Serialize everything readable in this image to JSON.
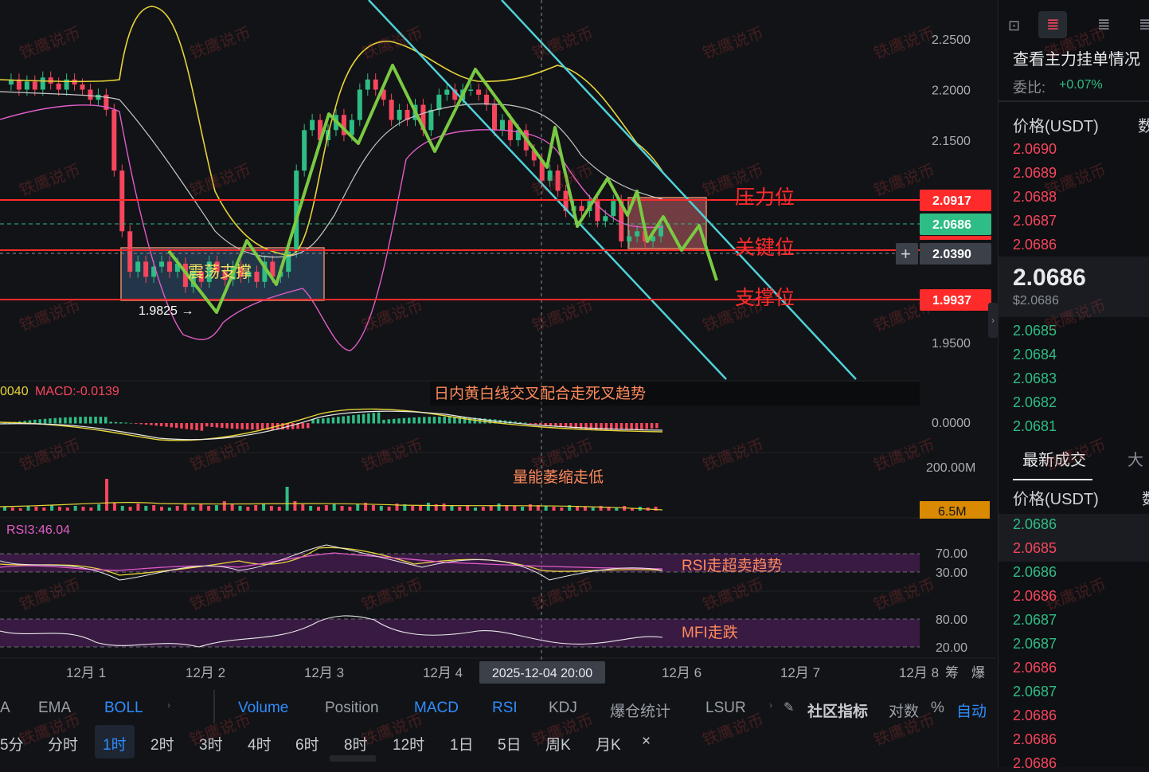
{
  "watermark": "铁鹰说币",
  "colors": {
    "up": "#2ebd85",
    "down": "#f6465d",
    "accent": "#2e8dff",
    "boll_upper": "#e6d43a",
    "boll_mid": "#c8c8c8",
    "boll_lower": "#e05dc8",
    "trend": "#7ac943",
    "channel": "#4fd1d9",
    "level": "#ff2b2b"
  },
  "main_chart": {
    "y_axis_ticks": [
      "2.2500",
      "2.2000",
      "2.1500",
      "1.9500"
    ],
    "price_tags": {
      "resistance": "2.0917",
      "last": "2.0686",
      "crosshair": "2.0390",
      "support": "1.9937"
    },
    "low_marker": "1.9825 →",
    "annotations": {
      "range_box": "震荡支撑",
      "resistance": "压力位",
      "key": "关键位",
      "support": "支撑位"
    }
  },
  "chart_data": {
    "type": "candlestick",
    "symbol_quote": "USDT",
    "interval": "1时",
    "ylim": [
      1.92,
      2.285
    ],
    "y_ticks": [
      1.95,
      2.15,
      2.2,
      2.25
    ],
    "x_tick_labels": [
      "12月 1",
      "12月 2",
      "12月 3",
      "12月 4",
      "12月 6",
      "12月 7",
      "12月 8"
    ],
    "crosshair_time": "2025-12-04 20:00",
    "levels": {
      "resistance": 2.0917,
      "last_price": 2.0686,
      "key": 2.039,
      "support": 1.9937,
      "marked_low": 1.9825
    },
    "close_path": [
      2.205,
      2.21,
      2.2,
      2.208,
      2.2,
      2.212,
      2.206,
      2.2,
      2.21,
      2.205,
      2.2,
      2.19,
      2.195,
      2.18,
      2.12,
      2.06,
      2.02,
      2.03,
      2.015,
      2.025,
      2.03,
      2.02,
      2.028,
      2.005,
      2.02,
      2.01,
      2.03,
      2.02,
      2.012,
      2.025,
      2.015,
      2.02,
      2.01,
      2.03,
      2.015,
      2.02,
      2.04,
      2.12,
      2.16,
      2.17,
      2.15,
      2.16,
      2.175,
      2.155,
      2.17,
      2.2,
      2.21,
      2.2,
      2.19,
      2.17,
      2.18,
      2.17,
      2.185,
      2.16,
      2.18,
      2.195,
      2.2,
      2.19,
      2.2,
      2.2,
      2.195,
      2.185,
      2.16,
      2.17,
      2.15,
      2.16,
      2.14,
      2.13,
      2.11,
      2.12,
      2.1,
      2.08,
      2.085,
      2.08,
      2.09,
      2.07,
      2.075,
      2.09,
      2.05,
      2.055,
      2.06,
      2.05,
      2.055,
      2.066
    ],
    "trend_path": [
      [
        212,
        315
      ],
      [
        272,
        392
      ],
      [
        310,
        302
      ],
      [
        347,
        357
      ],
      [
        413,
        143
      ],
      [
        450,
        180
      ],
      [
        493,
        82
      ],
      [
        546,
        190
      ],
      [
        597,
        87
      ],
      [
        687,
        210
      ],
      [
        697,
        160
      ],
      [
        725,
        284
      ],
      [
        763,
        224
      ],
      [
        788,
        270
      ],
      [
        800,
        240
      ],
      [
        813,
        303
      ],
      [
        833,
        272
      ],
      [
        856,
        314
      ],
      [
        878,
        283
      ],
      [
        900,
        352
      ]
    ],
    "indicators": {
      "macd_label": "MACD:-0.0139",
      "macd_prefix": "0040",
      "macd_zero": "0.0000",
      "volume_max": "200.00M",
      "volume_last": "6.5M",
      "rsi_label": "RSI3:46.04",
      "rsi_levels": [
        "70.00",
        "30.00"
      ],
      "mfi_levels": [
        "80.00",
        "20.00"
      ]
    },
    "notes": {
      "macd": "日内黄白线交叉配合走死叉趋势",
      "volume": "量能萎缩走低",
      "rsi": "RSI走超卖趋势",
      "mfi": "MFI走跌"
    }
  },
  "x_axis_labels": [
    "12月 1",
    "12月 2",
    "12月 3",
    "12月 4",
    "12月 6",
    "12月 7",
    "12月 8"
  ],
  "x_axis_right": [
    "筹",
    "爆"
  ],
  "crosshair_time": "2025-12-04 20:00",
  "indicator_bar": {
    "items": [
      "A",
      "EMA",
      "BOLL",
      "Volume",
      "Position",
      "MACD",
      "RSI",
      "KDJ",
      "爆仓统计",
      "LSUR"
    ],
    "community": "社区指标",
    "log": "对数",
    "percent": "%",
    "auto": "自动"
  },
  "timeframe_bar": {
    "items": [
      "5分",
      "分时",
      "1时",
      "2时",
      "3时",
      "4时",
      "6时",
      "8时",
      "12时",
      "1日",
      "5日",
      "周K",
      "月K",
      "×"
    ],
    "active": "1时"
  },
  "right_panel": {
    "title": "查看主力挂单情况",
    "ratio_label": "委比:",
    "ratio_value": "+0.07%",
    "book_header_price": "价格(USDT)",
    "book_header_qty": "数",
    "asks": [
      "2.0690",
      "2.0689",
      "2.0688",
      "2.0687",
      "2.0686"
    ],
    "last_price": "2.0686",
    "last_usd": "$2.0686",
    "bids": [
      "2.0685",
      "2.0684",
      "2.0683",
      "2.0682",
      "2.0681"
    ],
    "trades_tab": "最新成交",
    "trades_tab2": "大",
    "trades_header_price": "价格(USDT)",
    "trades_header_qty": "数",
    "trades": [
      {
        "p": "2.0686",
        "side": "up"
      },
      {
        "p": "2.0685",
        "side": "down"
      },
      {
        "p": "2.0686",
        "side": "up"
      },
      {
        "p": "2.0686",
        "side": "down"
      },
      {
        "p": "2.0687",
        "side": "up"
      },
      {
        "p": "2.0687",
        "side": "up"
      },
      {
        "p": "2.0686",
        "side": "down"
      },
      {
        "p": "2.0687",
        "side": "up"
      },
      {
        "p": "2.0686",
        "side": "down"
      },
      {
        "p": "2.0686",
        "side": "down"
      },
      {
        "p": "2.0686",
        "side": "down"
      }
    ]
  }
}
